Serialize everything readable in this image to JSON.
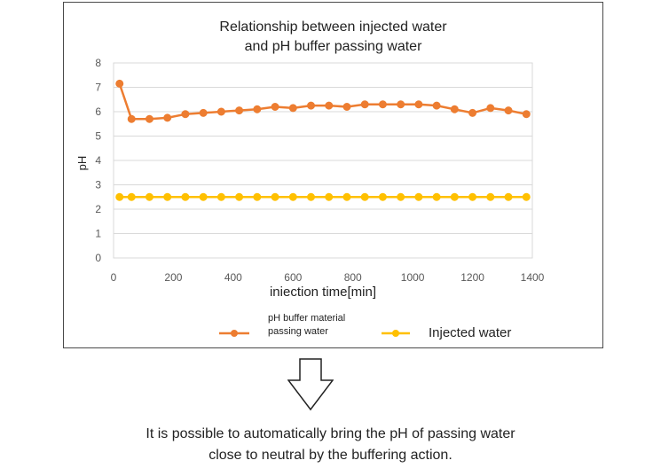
{
  "chart_data": {
    "type": "line",
    "title_lines": [
      "Relationship between injected water",
      "and pH buffer passing water"
    ],
    "xlabel": "iniection time[min]",
    "ylabel": "pH",
    "xlim": [
      0,
      1400
    ],
    "ylim": [
      0,
      8
    ],
    "xticks": [
      0,
      200,
      400,
      600,
      800,
      1000,
      1200,
      1400
    ],
    "yticks": [
      0,
      1,
      2,
      3,
      4,
      5,
      6,
      7,
      8
    ],
    "grid": true,
    "legend_position": "bottom",
    "series": [
      {
        "name": "pH buffer material passing water",
        "name_lines": [
          "pH buffer material",
          "passing water"
        ],
        "color": "#ED7D31",
        "x": [
          20,
          60,
          120,
          180,
          240,
          300,
          360,
          420,
          480,
          540,
          600,
          660,
          720,
          780,
          840,
          900,
          960,
          1020,
          1080,
          1140,
          1200,
          1260,
          1320,
          1380
        ],
        "y": [
          7.15,
          5.7,
          5.7,
          5.75,
          5.9,
          5.95,
          6.0,
          6.05,
          6.1,
          6.2,
          6.15,
          6.25,
          6.25,
          6.2,
          6.3,
          6.3,
          6.3,
          6.3,
          6.25,
          6.1,
          5.95,
          6.15,
          6.05,
          5.9
        ]
      },
      {
        "name": "Injected water",
        "name_lines": [
          "Injected water"
        ],
        "color": "#FFC000",
        "x": [
          20,
          60,
          120,
          180,
          240,
          300,
          360,
          420,
          480,
          540,
          600,
          660,
          720,
          780,
          840,
          900,
          960,
          1020,
          1080,
          1140,
          1200,
          1260,
          1320,
          1380
        ],
        "y": [
          2.5,
          2.5,
          2.5,
          2.5,
          2.5,
          2.5,
          2.5,
          2.5,
          2.5,
          2.5,
          2.5,
          2.5,
          2.5,
          2.5,
          2.5,
          2.5,
          2.5,
          2.5,
          2.5,
          2.5,
          2.5,
          2.5,
          2.5,
          2.5
        ]
      }
    ]
  },
  "caption": {
    "line1": "It is possible to automatically bring the pH of passing water",
    "line2": "close to neutral by the buffering action."
  },
  "colors": {
    "grid": "#D9D9D9",
    "axis_text": "#595959",
    "frame": "#4a4a4a"
  }
}
